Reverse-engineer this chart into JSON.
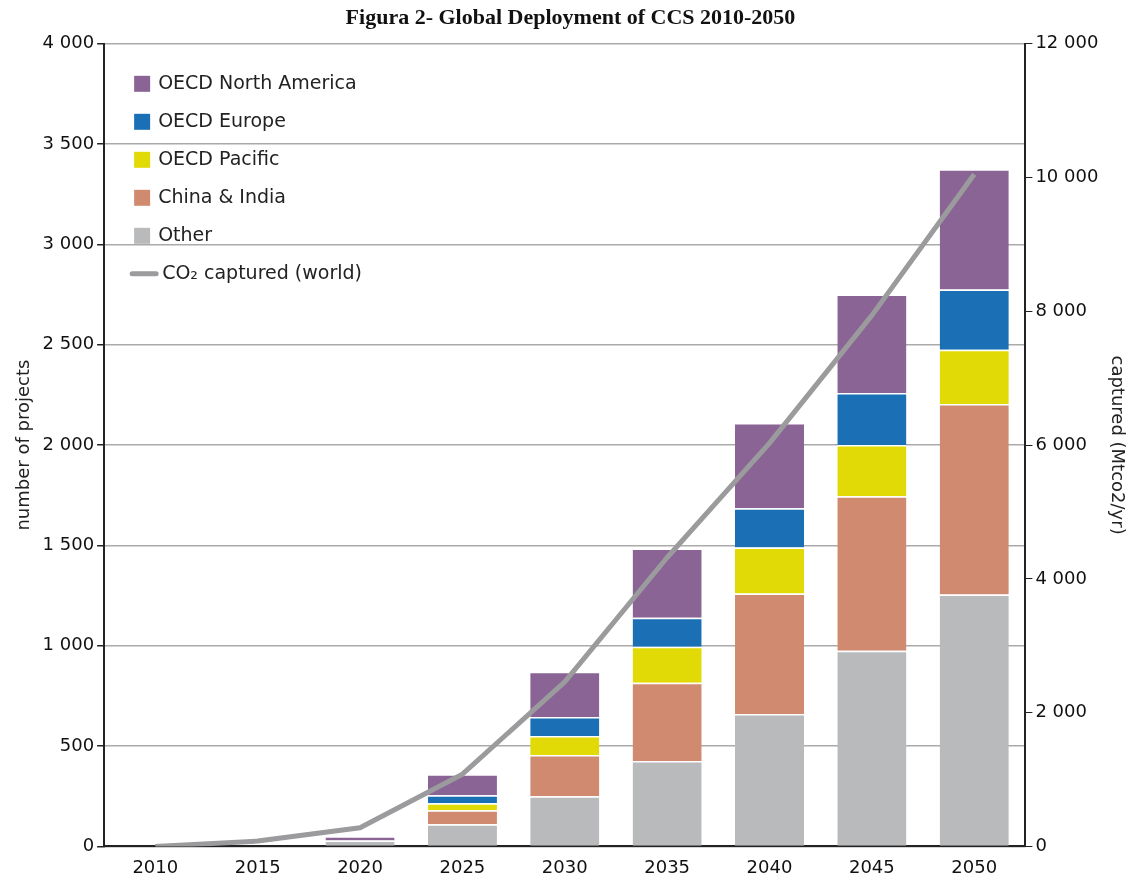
{
  "chart_data": {
    "type": "bar",
    "title": "Figura 2- Global Deployment of CCS 2010-2050",
    "stacked": true,
    "categories": [
      "2010",
      "2015",
      "2020",
      "2025",
      "2030",
      "2035",
      "2040",
      "2045",
      "2050"
    ],
    "series": [
      {
        "name": "Other",
        "color": "#b9babc",
        "values": [
          0,
          0,
          30,
          110,
          250,
          425,
          660,
          975,
          1255
        ]
      },
      {
        "name": "China & India",
        "color": "#d08a70",
        "values": [
          0,
          0,
          null,
          70,
          205,
          390,
          600,
          770,
          950
        ]
      },
      {
        "name": "OECD Pacific",
        "color": "#e2da06",
        "values": [
          0,
          0,
          null,
          35,
          95,
          180,
          230,
          255,
          270
        ]
      },
      {
        "name": "OECD Europe",
        "color": "#1a6fb5",
        "values": [
          0,
          0,
          null,
          40,
          95,
          145,
          195,
          260,
          300
        ]
      },
      {
        "name": "OECD North America",
        "color": "#8a6494",
        "values": [
          0,
          0,
          20,
          105,
          225,
          345,
          425,
          490,
          600
        ]
      },
      {
        "name": "CO₂ captured (world)",
        "type": "line",
        "axis": "y2",
        "color": "#9b9b9d",
        "marker": "none",
        "values": [
          0,
          80,
          280,
          1080,
          2460,
          4320,
          6030,
          7940,
          10050
        ]
      }
    ],
    "ylabel": "number of projects",
    "y2label": "captured (Mtco2/yr)",
    "ylim": [
      0,
      4000
    ],
    "yticks": [
      0,
      500,
      {
        "value": 1000,
        "label": "1 000"
      },
      {
        "value": 1500,
        "label": "1 500"
      },
      {
        "value": 2000,
        "label": "2 000"
      },
      {
        "value": 2500,
        "label": "2 500"
      },
      {
        "value": 3000,
        "label": "3 000"
      },
      {
        "value": 3500,
        "label": "3 500"
      },
      {
        "value": 4000,
        "label": "4 000"
      }
    ],
    "y2lim": [
      0,
      12000
    ],
    "y2ticks": [
      0,
      {
        "value": 2000,
        "label": "2 000"
      },
      {
        "value": 4000,
        "label": "4 000"
      },
      {
        "value": 6000,
        "label": "6 000"
      },
      {
        "value": 8000,
        "label": "8 000"
      },
      {
        "value": 10000,
        "label": "10 000"
      },
      {
        "value": 12000,
        "label": "12 000"
      }
    ],
    "grid": "y",
    "legend": "top left"
  }
}
